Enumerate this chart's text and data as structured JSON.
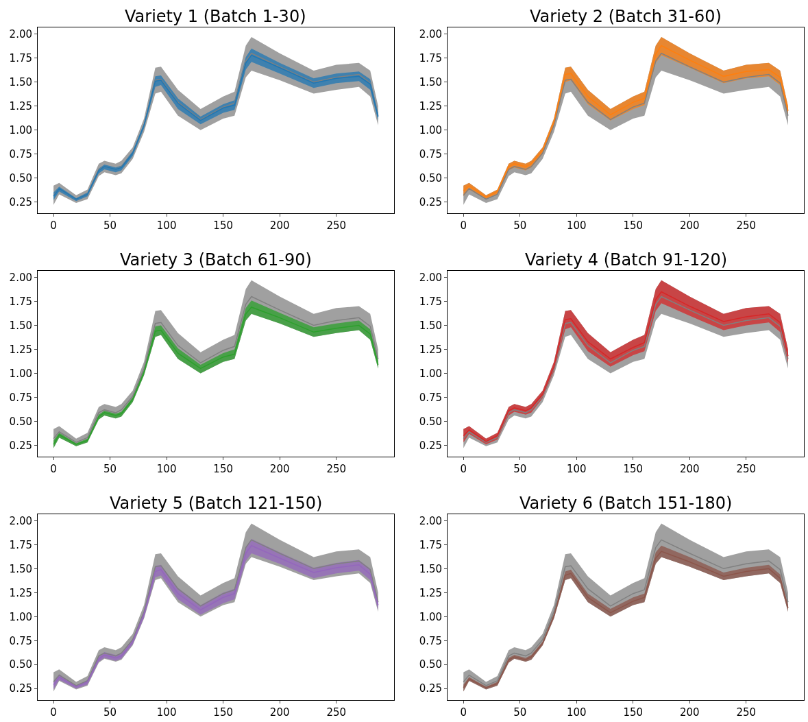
{
  "chart_data": [
    {
      "type": "line",
      "title": "Variety 1 (Batch 1-30)",
      "x": [
        0,
        5,
        20,
        30,
        40,
        45,
        55,
        60,
        70,
        80,
        90,
        95,
        110,
        130,
        150,
        160,
        170,
        175,
        200,
        230,
        250,
        270,
        280,
        287
      ],
      "xlim": [
        -14,
        301
      ],
      "ylim": [
        0.13,
        2.07
      ],
      "xticks": [
        0,
        50,
        100,
        150,
        200,
        250
      ],
      "yticks": [
        {
          "value": 0.25,
          "label": "0.25"
        },
        {
          "value": 0.5,
          "label": "0.50"
        },
        {
          "value": 0.75,
          "label": "0.75"
        },
        {
          "value": 1.0,
          "label": "1.00"
        },
        {
          "value": 1.25,
          "label": "1.25"
        },
        {
          "value": 1.5,
          "label": "1.50"
        },
        {
          "value": 1.75,
          "label": "1.75"
        },
        {
          "value": 2.0,
          "label": "2.00"
        }
      ],
      "series": [
        {
          "color": "#808080",
          "values": [
            0.32,
            0.39,
            0.28,
            0.33,
            0.59,
            0.62,
            0.59,
            0.62,
            0.76,
            1.05,
            1.52,
            1.53,
            1.29,
            1.11,
            1.24,
            1.28,
            1.72,
            1.8,
            1.66,
            1.5,
            1.55,
            1.58,
            1.49,
            1.15
          ],
          "lower": [
            0.22,
            0.33,
            0.24,
            0.28,
            0.52,
            0.56,
            0.53,
            0.55,
            0.7,
            0.98,
            1.38,
            1.4,
            1.15,
            1.0,
            1.12,
            1.15,
            1.55,
            1.62,
            1.52,
            1.38,
            1.42,
            1.45,
            1.35,
            1.05
          ],
          "upper": [
            0.42,
            0.45,
            0.32,
            0.38,
            0.65,
            0.68,
            0.65,
            0.68,
            0.82,
            1.12,
            1.65,
            1.66,
            1.42,
            1.22,
            1.35,
            1.4,
            1.88,
            1.97,
            1.8,
            1.62,
            1.68,
            1.7,
            1.62,
            1.25
          ]
        },
        {
          "color": "#1f77b4",
          "values": [
            0.31,
            0.39,
            0.28,
            0.33,
            0.58,
            0.62,
            0.59,
            0.61,
            0.76,
            1.05,
            1.51,
            1.52,
            1.28,
            1.1,
            1.23,
            1.26,
            1.7,
            1.78,
            1.65,
            1.49,
            1.54,
            1.56,
            1.48,
            1.14
          ],
          "lower": [
            0.27,
            0.36,
            0.26,
            0.31,
            0.55,
            0.59,
            0.56,
            0.58,
            0.73,
            1.02,
            1.45,
            1.47,
            1.22,
            1.06,
            1.18,
            1.21,
            1.63,
            1.71,
            1.59,
            1.44,
            1.49,
            1.51,
            1.42,
            1.1
          ],
          "upper": [
            0.35,
            0.41,
            0.29,
            0.35,
            0.6,
            0.64,
            0.61,
            0.63,
            0.78,
            1.07,
            1.56,
            1.57,
            1.33,
            1.14,
            1.27,
            1.31,
            1.76,
            1.85,
            1.7,
            1.54,
            1.59,
            1.61,
            1.53,
            1.18
          ]
        }
      ]
    },
    {
      "type": "line",
      "title": "Variety 2 (Batch 31-60)",
      "x": [
        0,
        5,
        20,
        30,
        40,
        45,
        55,
        60,
        70,
        80,
        90,
        95,
        110,
        130,
        150,
        160,
        170,
        175,
        200,
        230,
        250,
        270,
        280,
        287
      ],
      "xlim": [
        -14,
        301
      ],
      "ylim": [
        0.13,
        2.07
      ],
      "xticks": [
        0,
        50,
        100,
        150,
        200,
        250
      ],
      "yticks": [
        {
          "value": 0.25,
          "label": "0.25"
        },
        {
          "value": 0.5,
          "label": "0.50"
        },
        {
          "value": 0.75,
          "label": "0.75"
        },
        {
          "value": 1.0,
          "label": "1.00"
        },
        {
          "value": 1.25,
          "label": "1.25"
        },
        {
          "value": 1.5,
          "label": "1.50"
        },
        {
          "value": 1.75,
          "label": "1.75"
        },
        {
          "value": 2.0,
          "label": "2.00"
        }
      ],
      "series": [
        {
          "color": "#808080",
          "values": [
            0.32,
            0.39,
            0.28,
            0.33,
            0.59,
            0.62,
            0.59,
            0.62,
            0.76,
            1.05,
            1.52,
            1.53,
            1.29,
            1.11,
            1.24,
            1.28,
            1.72,
            1.8,
            1.66,
            1.5,
            1.55,
            1.58,
            1.49,
            1.15
          ],
          "lower": [
            0.22,
            0.33,
            0.24,
            0.28,
            0.52,
            0.56,
            0.53,
            0.55,
            0.7,
            0.98,
            1.38,
            1.4,
            1.15,
            1.0,
            1.12,
            1.15,
            1.55,
            1.62,
            1.52,
            1.38,
            1.42,
            1.45,
            1.35,
            1.05
          ],
          "upper": [
            0.42,
            0.45,
            0.32,
            0.38,
            0.65,
            0.68,
            0.65,
            0.68,
            0.82,
            1.12,
            1.65,
            1.66,
            1.42,
            1.22,
            1.35,
            1.4,
            1.88,
            1.97,
            1.8,
            1.62,
            1.68,
            1.7,
            1.62,
            1.25
          ]
        },
        {
          "color": "#ff7f0e",
          "values": [
            0.37,
            0.42,
            0.3,
            0.36,
            0.62,
            0.65,
            0.62,
            0.65,
            0.79,
            1.08,
            1.58,
            1.59,
            1.35,
            1.16,
            1.29,
            1.33,
            1.79,
            1.88,
            1.73,
            1.56,
            1.61,
            1.63,
            1.55,
            1.2
          ],
          "lower": [
            0.31,
            0.38,
            0.28,
            0.33,
            0.58,
            0.61,
            0.58,
            0.61,
            0.75,
            1.04,
            1.5,
            1.52,
            1.27,
            1.1,
            1.22,
            1.26,
            1.7,
            1.78,
            1.65,
            1.49,
            1.54,
            1.56,
            1.47,
            1.14
          ],
          "upper": [
            0.42,
            0.45,
            0.32,
            0.38,
            0.65,
            0.68,
            0.65,
            0.68,
            0.82,
            1.12,
            1.65,
            1.66,
            1.42,
            1.22,
            1.35,
            1.4,
            1.88,
            1.97,
            1.8,
            1.62,
            1.68,
            1.7,
            1.62,
            1.25
          ]
        }
      ]
    },
    {
      "type": "line",
      "title": "Variety 3 (Batch 61-90)",
      "x": [
        0,
        5,
        20,
        30,
        40,
        45,
        55,
        60,
        70,
        80,
        90,
        95,
        110,
        130,
        150,
        160,
        170,
        175,
        200,
        230,
        250,
        270,
        280,
        287
      ],
      "xlim": [
        -14,
        301
      ],
      "ylim": [
        0.13,
        2.07
      ],
      "xticks": [
        0,
        50,
        100,
        150,
        200,
        250
      ],
      "yticks": [
        {
          "value": 0.25,
          "label": "0.25"
        },
        {
          "value": 0.5,
          "label": "0.50"
        },
        {
          "value": 0.75,
          "label": "0.75"
        },
        {
          "value": 1.0,
          "label": "1.00"
        },
        {
          "value": 1.25,
          "label": "1.25"
        },
        {
          "value": 1.5,
          "label": "1.50"
        },
        {
          "value": 1.75,
          "label": "1.75"
        },
        {
          "value": 2.0,
          "label": "2.00"
        }
      ],
      "series": [
        {
          "color": "#808080",
          "values": [
            0.32,
            0.39,
            0.28,
            0.33,
            0.59,
            0.62,
            0.59,
            0.62,
            0.76,
            1.05,
            1.52,
            1.53,
            1.29,
            1.11,
            1.24,
            1.28,
            1.72,
            1.8,
            1.66,
            1.5,
            1.55,
            1.58,
            1.49,
            1.15
          ],
          "lower": [
            0.22,
            0.33,
            0.24,
            0.28,
            0.52,
            0.56,
            0.53,
            0.55,
            0.7,
            0.98,
            1.38,
            1.4,
            1.15,
            1.0,
            1.12,
            1.15,
            1.55,
            1.62,
            1.52,
            1.38,
            1.42,
            1.45,
            1.35,
            1.05
          ],
          "upper": [
            0.42,
            0.45,
            0.32,
            0.38,
            0.65,
            0.68,
            0.65,
            0.68,
            0.82,
            1.12,
            1.65,
            1.66,
            1.42,
            1.22,
            1.35,
            1.4,
            1.88,
            1.97,
            1.8,
            1.62,
            1.68,
            1.7,
            1.62,
            1.25
          ]
        },
        {
          "color": "#2ca02c",
          "values": [
            0.26,
            0.36,
            0.26,
            0.3,
            0.55,
            0.59,
            0.56,
            0.58,
            0.73,
            1.01,
            1.44,
            1.45,
            1.21,
            1.05,
            1.17,
            1.2,
            1.62,
            1.69,
            1.58,
            1.43,
            1.47,
            1.5,
            1.41,
            1.09
          ],
          "lower": [
            0.22,
            0.33,
            0.24,
            0.28,
            0.52,
            0.56,
            0.53,
            0.55,
            0.7,
            0.98,
            1.38,
            1.4,
            1.15,
            1.0,
            1.12,
            1.15,
            1.55,
            1.62,
            1.52,
            1.38,
            1.42,
            1.45,
            1.35,
            1.05
          ],
          "upper": [
            0.3,
            0.38,
            0.27,
            0.32,
            0.57,
            0.61,
            0.58,
            0.6,
            0.75,
            1.04,
            1.49,
            1.5,
            1.26,
            1.09,
            1.21,
            1.25,
            1.68,
            1.76,
            1.63,
            1.48,
            1.52,
            1.55,
            1.46,
            1.13
          ]
        }
      ]
    },
    {
      "type": "line",
      "title": "Variety 4 (Batch 91-120)",
      "x": [
        0,
        5,
        20,
        30,
        40,
        45,
        55,
        60,
        70,
        80,
        90,
        95,
        110,
        130,
        150,
        160,
        170,
        175,
        200,
        230,
        250,
        270,
        280,
        287
      ],
      "xlim": [
        -14,
        301
      ],
      "ylim": [
        0.13,
        2.07
      ],
      "xticks": [
        0,
        50,
        100,
        150,
        200,
        250
      ],
      "yticks": [
        {
          "value": 0.25,
          "label": "0.25"
        },
        {
          "value": 0.5,
          "label": "0.50"
        },
        {
          "value": 0.75,
          "label": "0.75"
        },
        {
          "value": 1.0,
          "label": "1.00"
        },
        {
          "value": 1.25,
          "label": "1.25"
        },
        {
          "value": 1.5,
          "label": "1.50"
        },
        {
          "value": 1.75,
          "label": "1.75"
        },
        {
          "value": 2.0,
          "label": "2.00"
        }
      ],
      "series": [
        {
          "color": "#808080",
          "values": [
            0.32,
            0.39,
            0.28,
            0.33,
            0.59,
            0.62,
            0.59,
            0.62,
            0.76,
            1.05,
            1.52,
            1.53,
            1.29,
            1.11,
            1.24,
            1.28,
            1.72,
            1.8,
            1.66,
            1.5,
            1.55,
            1.58,
            1.49,
            1.15
          ],
          "lower": [
            0.22,
            0.33,
            0.24,
            0.28,
            0.52,
            0.56,
            0.53,
            0.55,
            0.7,
            0.98,
            1.38,
            1.4,
            1.15,
            1.0,
            1.12,
            1.15,
            1.55,
            1.62,
            1.52,
            1.38,
            1.42,
            1.45,
            1.35,
            1.05
          ],
          "upper": [
            0.42,
            0.45,
            0.32,
            0.38,
            0.65,
            0.68,
            0.65,
            0.68,
            0.82,
            1.12,
            1.65,
            1.66,
            1.42,
            1.22,
            1.35,
            1.4,
            1.88,
            1.97,
            1.8,
            1.62,
            1.68,
            1.7,
            1.62,
            1.25
          ]
        },
        {
          "color": "#d62728",
          "values": [
            0.35,
            0.41,
            0.29,
            0.35,
            0.61,
            0.64,
            0.61,
            0.64,
            0.78,
            1.07,
            1.56,
            1.57,
            1.33,
            1.15,
            1.27,
            1.32,
            1.77,
            1.85,
            1.7,
            1.54,
            1.59,
            1.62,
            1.53,
            1.18
          ],
          "lower": [
            0.28,
            0.37,
            0.26,
            0.31,
            0.56,
            0.6,
            0.57,
            0.59,
            0.74,
            1.02,
            1.46,
            1.48,
            1.23,
            1.07,
            1.19,
            1.23,
            1.65,
            1.73,
            1.6,
            1.45,
            1.5,
            1.53,
            1.43,
            1.11
          ],
          "upper": [
            0.42,
            0.45,
            0.32,
            0.38,
            0.65,
            0.68,
            0.65,
            0.68,
            0.82,
            1.12,
            1.65,
            1.66,
            1.42,
            1.22,
            1.35,
            1.4,
            1.88,
            1.97,
            1.8,
            1.62,
            1.68,
            1.7,
            1.62,
            1.25
          ]
        }
      ]
    },
    {
      "type": "line",
      "title": "Variety 5 (Batch 121-150)",
      "x": [
        0,
        5,
        20,
        30,
        40,
        45,
        55,
        60,
        70,
        80,
        90,
        95,
        110,
        130,
        150,
        160,
        170,
        175,
        200,
        230,
        250,
        270,
        280,
        287
      ],
      "xlim": [
        -14,
        301
      ],
      "ylim": [
        0.13,
        2.07
      ],
      "xticks": [
        0,
        50,
        100,
        150,
        200,
        250
      ],
      "yticks": [
        {
          "value": 0.25,
          "label": "0.25"
        },
        {
          "value": 0.5,
          "label": "0.50"
        },
        {
          "value": 0.75,
          "label": "0.75"
        },
        {
          "value": 1.0,
          "label": "1.00"
        },
        {
          "value": 1.25,
          "label": "1.25"
        },
        {
          "value": 1.5,
          "label": "1.50"
        },
        {
          "value": 1.75,
          "label": "1.75"
        },
        {
          "value": 2.0,
          "label": "2.00"
        }
      ],
      "series": [
        {
          "color": "#808080",
          "values": [
            0.32,
            0.39,
            0.28,
            0.33,
            0.59,
            0.62,
            0.59,
            0.62,
            0.76,
            1.05,
            1.52,
            1.53,
            1.29,
            1.11,
            1.24,
            1.28,
            1.72,
            1.8,
            1.66,
            1.5,
            1.55,
            1.58,
            1.49,
            1.15
          ],
          "lower": [
            0.22,
            0.33,
            0.24,
            0.28,
            0.52,
            0.56,
            0.53,
            0.55,
            0.7,
            0.98,
            1.38,
            1.4,
            1.15,
            1.0,
            1.12,
            1.15,
            1.55,
            1.62,
            1.52,
            1.38,
            1.42,
            1.45,
            1.35,
            1.05
          ],
          "upper": [
            0.42,
            0.45,
            0.32,
            0.38,
            0.65,
            0.68,
            0.65,
            0.68,
            0.82,
            1.12,
            1.65,
            1.66,
            1.42,
            1.22,
            1.35,
            1.4,
            1.88,
            1.97,
            1.8,
            1.62,
            1.68,
            1.7,
            1.62,
            1.25
          ]
        },
        {
          "color": "#9467bd",
          "values": [
            0.29,
            0.37,
            0.27,
            0.32,
            0.56,
            0.6,
            0.57,
            0.59,
            0.74,
            1.03,
            1.47,
            1.49,
            1.24,
            1.07,
            1.2,
            1.24,
            1.66,
            1.74,
            1.61,
            1.46,
            1.51,
            1.54,
            1.44,
            1.12
          ],
          "lower": [
            0.24,
            0.34,
            0.25,
            0.29,
            0.53,
            0.57,
            0.54,
            0.56,
            0.71,
            0.99,
            1.41,
            1.43,
            1.18,
            1.02,
            1.14,
            1.18,
            1.58,
            1.66,
            1.55,
            1.4,
            1.45,
            1.48,
            1.38,
            1.07
          ],
          "upper": [
            0.33,
            0.4,
            0.28,
            0.34,
            0.59,
            0.63,
            0.6,
            0.62,
            0.77,
            1.06,
            1.53,
            1.54,
            1.3,
            1.12,
            1.25,
            1.29,
            1.73,
            1.81,
            1.67,
            1.51,
            1.56,
            1.59,
            1.5,
            1.16
          ]
        }
      ]
    },
    {
      "type": "line",
      "title": "Variety 6 (Batch 151-180)",
      "x": [
        0,
        5,
        20,
        30,
        40,
        45,
        55,
        60,
        70,
        80,
        90,
        95,
        110,
        130,
        150,
        160,
        170,
        175,
        200,
        230,
        250,
        270,
        280,
        287
      ],
      "xlim": [
        -14,
        301
      ],
      "ylim": [
        0.13,
        2.07
      ],
      "xticks": [
        0,
        50,
        100,
        150,
        200,
        250
      ],
      "yticks": [
        {
          "value": 0.25,
          "label": "0.25"
        },
        {
          "value": 0.5,
          "label": "0.50"
        },
        {
          "value": 0.75,
          "label": "0.75"
        },
        {
          "value": 1.0,
          "label": "1.00"
        },
        {
          "value": 1.25,
          "label": "1.25"
        },
        {
          "value": 1.5,
          "label": "1.50"
        },
        {
          "value": 1.75,
          "label": "1.75"
        },
        {
          "value": 2.0,
          "label": "2.00"
        }
      ],
      "series": [
        {
          "color": "#808080",
          "values": [
            0.32,
            0.39,
            0.28,
            0.33,
            0.59,
            0.62,
            0.59,
            0.62,
            0.76,
            1.05,
            1.52,
            1.53,
            1.29,
            1.11,
            1.24,
            1.28,
            1.72,
            1.8,
            1.66,
            1.5,
            1.55,
            1.58,
            1.49,
            1.15
          ],
          "lower": [
            0.22,
            0.33,
            0.24,
            0.28,
            0.52,
            0.56,
            0.53,
            0.55,
            0.7,
            0.98,
            1.38,
            1.4,
            1.15,
            1.0,
            1.12,
            1.15,
            1.55,
            1.62,
            1.52,
            1.38,
            1.42,
            1.45,
            1.35,
            1.05
          ],
          "upper": [
            0.42,
            0.45,
            0.32,
            0.38,
            0.65,
            0.68,
            0.65,
            0.68,
            0.82,
            1.12,
            1.65,
            1.66,
            1.42,
            1.22,
            1.35,
            1.4,
            1.88,
            1.97,
            1.8,
            1.62,
            1.68,
            1.7,
            1.62,
            1.25
          ]
        },
        {
          "color": "#8c564b",
          "values": [
            0.26,
            0.35,
            0.26,
            0.3,
            0.55,
            0.58,
            0.55,
            0.58,
            0.72,
            1.01,
            1.43,
            1.45,
            1.2,
            1.04,
            1.16,
            1.2,
            1.61,
            1.68,
            1.57,
            1.42,
            1.47,
            1.5,
            1.4,
            1.09
          ],
          "lower": [
            0.22,
            0.33,
            0.24,
            0.28,
            0.52,
            0.56,
            0.53,
            0.55,
            0.7,
            0.98,
            1.38,
            1.4,
            1.15,
            1.0,
            1.12,
            1.15,
            1.55,
            1.62,
            1.52,
            1.38,
            1.42,
            1.45,
            1.35,
            1.05
          ],
          "upper": [
            0.29,
            0.37,
            0.27,
            0.32,
            0.57,
            0.6,
            0.57,
            0.6,
            0.74,
            1.03,
            1.47,
            1.49,
            1.24,
            1.08,
            1.2,
            1.24,
            1.67,
            1.74,
            1.62,
            1.46,
            1.51,
            1.54,
            1.44,
            1.12
          ]
        }
      ]
    }
  ]
}
